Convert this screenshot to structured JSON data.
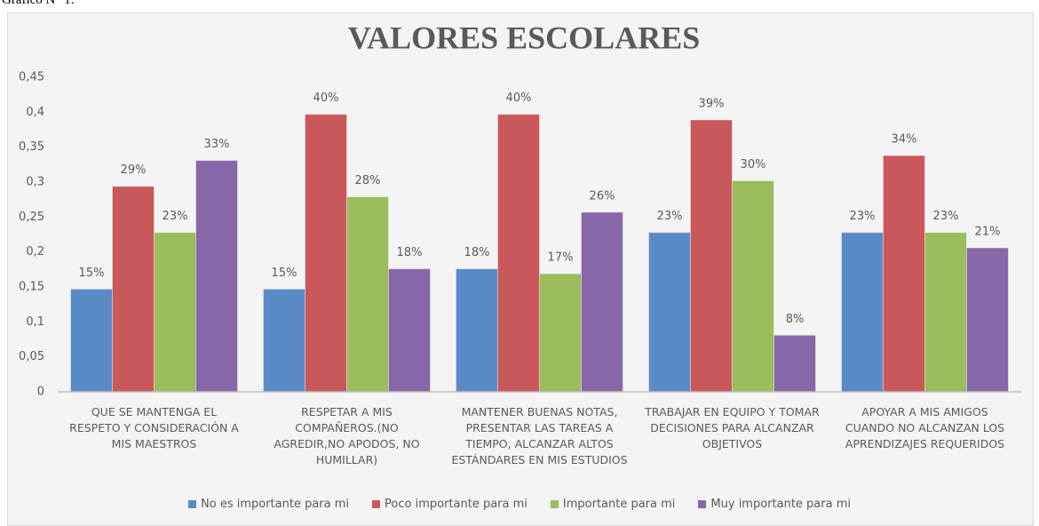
{
  "caption": "Gráfico N° 1:",
  "chart_data": {
    "type": "bar",
    "title": "VALORES  ESCOLARES",
    "categories": [
      "QUE SE MANTENGA EL\nRESPETO Y CONSIDERACIÓN A\nMIS MAESTROS",
      "RESPETAR A MIS\nCOMPAÑEROS.(NO\nAGREDIR,NO APODOS, NO\nHUMILLAR)",
      "MANTENER BUENAS NOTAS,\nPRESENTAR LAS TAREAS A\nTIEMPO, ALCANZAR ALTOS\nESTÁNDARES EN MIS ESTUDIOS",
      "TRABAJAR EN EQUIPO Y TOMAR\nDECISIONES  PARA ALCANZAR\nOBJETIVOS",
      "APOYAR A MIS AMIGOS\nCUANDO NO ALCANZAN LOS\nAPRENDIZAJES REQUERIDOS"
    ],
    "series": [
      {
        "name": "No es importante para mi",
        "color": "#5b8bc7",
        "values": [
          0.147,
          0.147,
          0.176,
          0.228,
          0.228
        ],
        "value_labels": [
          "15%",
          "15%",
          "18%",
          "23%",
          "23%"
        ]
      },
      {
        "name": "Poco importante para mi",
        "color": "#c9585a",
        "values": [
          0.294,
          0.397,
          0.397,
          0.389,
          0.338
        ],
        "value_labels": [
          "29%",
          "40%",
          "40%",
          "39%",
          "34%"
        ]
      },
      {
        "name": "Importante para mi",
        "color": "#9bbd5c",
        "values": [
          0.228,
          0.279,
          0.169,
          0.302,
          0.228
        ],
        "value_labels": [
          "23%",
          "28%",
          "17%",
          "30%",
          "23%"
        ]
      },
      {
        "name": "Muy importante para mi",
        "color": "#8668a8",
        "values": [
          0.331,
          0.176,
          0.257,
          0.081,
          0.206
        ],
        "value_labels": [
          "33%",
          "18%",
          "26%",
          "8%",
          "21%"
        ]
      }
    ],
    "ylim": [
      0,
      0.45
    ],
    "yticks": [
      0,
      {
        "value": 0.05,
        "label": "0,05"
      },
      {
        "value": 0.1,
        "label": "0,1"
      },
      {
        "value": 0.15,
        "label": "0,15"
      },
      {
        "value": 0.2,
        "label": "0,2"
      },
      {
        "value": 0.25,
        "label": "0,25"
      },
      {
        "value": 0.3,
        "label": "0,3"
      },
      {
        "value": 0.35,
        "label": "0,35"
      },
      {
        "value": 0.4,
        "label": "0,4"
      },
      {
        "value": 0.45,
        "label": "0,45"
      }
    ],
    "grid": false,
    "legend": "bottom"
  }
}
